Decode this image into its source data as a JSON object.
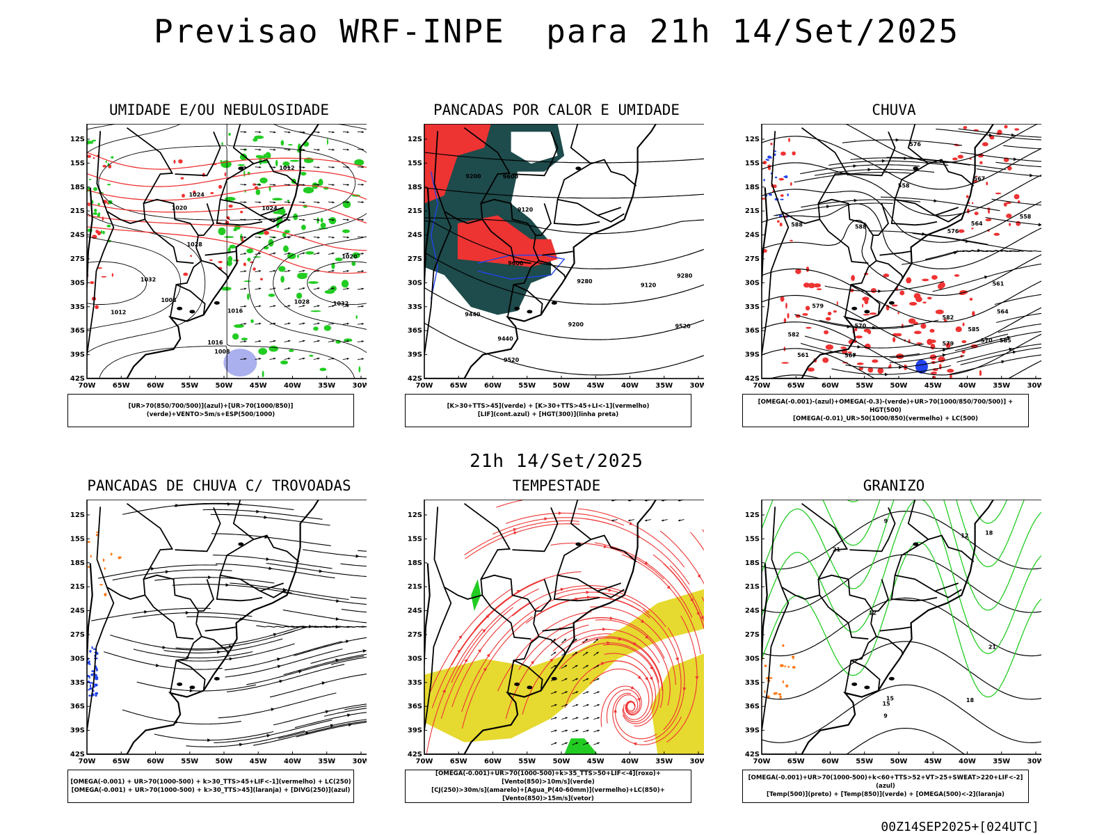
{
  "main_title": "Previsao WRF-INPE  para 21h 14/Set/2025",
  "mid_title": "21h 14/Set/2025",
  "footer": "00Z14SEP2025+[024UTC]",
  "lat_labels": [
    "12S",
    "15S",
    "18S",
    "21S",
    "24S",
    "27S",
    "30S",
    "33S",
    "36S",
    "39S",
    "42S"
  ],
  "lon_labels": [
    "70W",
    "65W",
    "60W",
    "55W",
    "50W",
    "45W",
    "40W",
    "35W",
    "30W"
  ],
  "colors": {
    "green": "#22cc22",
    "red": "#ee3333",
    "blue": "#2244ee",
    "dark_teal": "#1e4b4b",
    "yellow": "#e6d930",
    "orange": "#ff7a1a",
    "lightblue": "#aab0ee"
  },
  "panels": [
    {
      "title": "UMIDADE E/OU NEBULOSIDADE",
      "legend": [
        "[UR>70(850/700/500)](azul)+[UR>70(1000/850)](verde)+VENTO>5m/s+ESP(500/1000)"
      ],
      "labels": [
        "1008",
        "1012",
        "1016",
        "1020",
        "1024",
        "1028",
        "1032"
      ]
    },
    {
      "title": "PANCADAS POR CALOR E UMIDADE",
      "legend": [
        "[K>30+TTS>45](verde) + [K>30+TTS>45+LI<-1](vermelho)",
        "[LIF](cont.azul) + [HGT(300)](linha preta)"
      ],
      "labels": [
        "9600",
        "9520",
        "9440",
        "9280",
        "9200",
        "9120"
      ]
    },
    {
      "title": "CHUVA",
      "legend": [
        "[OMEGA(-0.001)-(azul)+OMEGA(-0.3)-(verde)+UR>70(1000/850/700/500)] + HGT(500)",
        "[OMEGA(-0.01)_UR>50(1000/850)(vermelho) + LC(500)"
      ],
      "labels": [
        "588",
        "585",
        "582",
        "579",
        "576",
        "570",
        "567",
        "564",
        "561",
        "558"
      ]
    },
    {
      "title": "PANCADAS DE CHUVA C/ TROVOADAS",
      "legend": [
        "[OMEGA(-0.001) + UR>70(1000-500) + k>30_TTS>45+LIF<-1](vermelho) + LC(250)",
        "[OMEGA(-0.001) + UR>70(1000-500) + k>30_TTS>45](laranja) + [DIVG(250)](azul)"
      ],
      "labels": []
    },
    {
      "title": "TEMPESTADE",
      "legend": [
        "[OMEGA(-0.001)+UR>70(1000-500)+k>35_TTS>50+LIF<-4](roxo)+[Vento(850)>10m/s](verde)",
        "[CJ(250)>30m/s](amarelo)+[Agua_P(40-60mm)](vermelho)+LC(850)+[Vento(850)>15m/s](vetor)"
      ],
      "labels": []
    },
    {
      "title": "GRANIZO",
      "legend": [
        "[OMEGA(-0.001)+UR>70(1000-500)+k<60+TTS>52+VT>25+SWEAT>220+LIF<-2](azul)",
        "[Temp(500)](preto) + [Temp(850)](verde) + [OMEGA(500)<-2](laranja)"
      ],
      "labels": [
        "9",
        "12",
        "15",
        "18",
        "21"
      ]
    }
  ]
}
